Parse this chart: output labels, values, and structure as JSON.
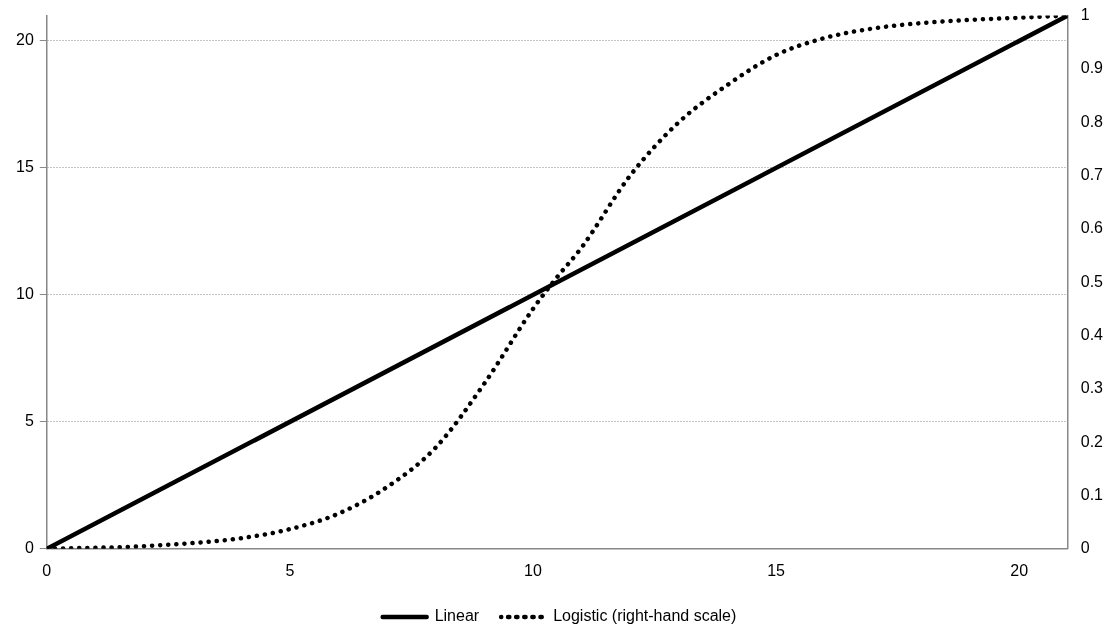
{
  "chart_data": {
    "type": "line",
    "xlim": [
      0,
      21
    ],
    "xticks": [
      0,
      5,
      10,
      15,
      20
    ],
    "ylim": [
      0,
      21
    ],
    "yticks": [
      0,
      5,
      10,
      15,
      20
    ],
    "y2lim": [
      0,
      1
    ],
    "y2ticks": [
      0,
      0.1,
      0.2,
      0.3,
      0.4,
      0.5,
      0.6,
      0.7,
      0.8,
      0.9,
      1
    ],
    "grid": "y",
    "legend": "bottom",
    "marker": "none",
    "series": [
      {
        "name": "Linear",
        "color": "#000000",
        "line_style": "solid",
        "x": [
          0,
          21
        ],
        "values": [
          0,
          21
        ]
      },
      {
        "name": "Logistic (right-hand scale)",
        "color": "#000000",
        "line_style": "dotted",
        "axis": "y2",
        "x": [
          0,
          2,
          4,
          5,
          6,
          7,
          8,
          9,
          10,
          10.5,
          11,
          12,
          13,
          14,
          15,
          16,
          17,
          18,
          19,
          20,
          21
        ],
        "values": [
          0,
          0.005,
          0.02,
          0.037,
          0.066,
          0.116,
          0.19,
          0.31,
          0.45,
          0.51,
          0.565,
          0.7,
          0.8,
          0.87,
          0.926,
          0.958,
          0.976,
          0.986,
          0.992,
          0.996,
          1
        ]
      }
    ]
  }
}
